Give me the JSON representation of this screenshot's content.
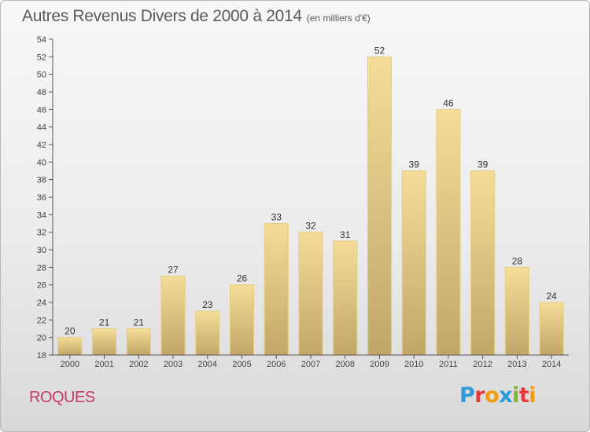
{
  "chart_data": {
    "type": "bar",
    "title": "Autres Revenus Divers de 2000 à 2014",
    "unit_note": "(en milliers d'€)",
    "xlabel": "",
    "ylabel": "",
    "categories": [
      "2000",
      "2001",
      "2002",
      "2003",
      "2004",
      "2005",
      "2006",
      "2007",
      "2008",
      "2009",
      "2010",
      "2011",
      "2012",
      "2013",
      "2014"
    ],
    "values": [
      20,
      21,
      21,
      27,
      23,
      26,
      33,
      32,
      31,
      52,
      39,
      46,
      39,
      28,
      24
    ],
    "ylim": [
      18,
      54
    ],
    "ytick_step": 2,
    "grid": false,
    "bar_colors": {
      "top": "#f5dd98",
      "bottom": "#c2a668",
      "edge": "#e8cc80"
    }
  },
  "footer": {
    "commune": "ROQUES",
    "logo_letters": [
      "P",
      "r",
      "o",
      "x",
      "i",
      "t",
      "i"
    ],
    "logo_colors": [
      "#2e9ad8",
      "#e8383a",
      "#f39c12",
      "#2e9ad8",
      "#7cb82f",
      "#e8383a",
      "#f39c12"
    ]
  },
  "colors": {
    "commune": "#c8386e",
    "title": "#5a5a5a"
  }
}
